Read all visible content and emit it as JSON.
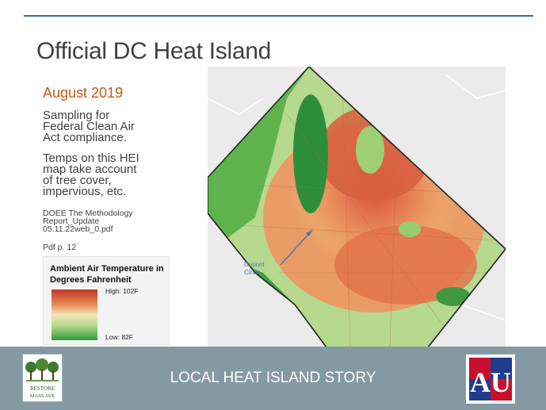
{
  "slide": {
    "title": "Official DC Heat Island",
    "date": "August 2019",
    "paragraph1": [
      "Sampling for",
      "Federal Clean Air",
      "Act compliance."
    ],
    "paragraph2": [
      "Temps on this HEI",
      "map take account",
      "of tree cover,",
      "impervious, etc."
    ],
    "source": [
      "DOEE The Methodology",
      "Report_Update",
      "05.11.22web_0.pdf"
    ],
    "page_ref": "Pdf p. 12"
  },
  "legend": {
    "title": [
      "Ambient Air Temperature in",
      "Degrees Fahrenheit"
    ],
    "high": "High: 102F",
    "low": "Low: 82F"
  },
  "map": {
    "annotation": [
      "Dupont",
      "Circle"
    ]
  },
  "footer": {
    "text": "LOCAL HEAT ISLAND STORY",
    "restore_logo_text": [
      "RESTORE",
      "MASS AVE"
    ],
    "au_logo_text": "AU"
  },
  "colors": {
    "accent_orange": "#c55a11",
    "rule_blue": "#3f6d9a",
    "footer_bg": "#849aa3",
    "au_red": "#c8102e",
    "au_blue": "#1f3d8c"
  }
}
